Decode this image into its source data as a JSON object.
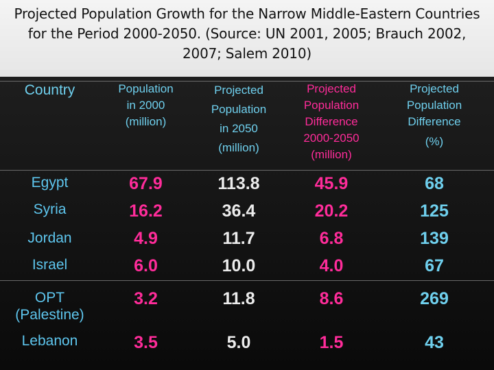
{
  "title": {
    "line1": "Projected Population Growth for the Narrow Middle-Eastern Countries",
    "line2": "for the Period 2000-2050. (Source: UN 2001, 2005; Brauch 2002,",
    "line3": "2007;  Salem 2010)"
  },
  "headers": {
    "country": "Country",
    "pop2000": [
      "Population",
      "in 2000",
      "(million)"
    ],
    "pop2050": [
      "Projected",
      "Population",
      "in 2050",
      "(million)"
    ],
    "diff": [
      "Projected",
      "Population",
      "Difference",
      "2000-2050",
      "(million)"
    ],
    "pct": [
      "Projected",
      "Population",
      "Difference",
      "(%)"
    ]
  },
  "rows": [
    {
      "country": "Egypt",
      "pop2000": "67.9",
      "pop2050": "113.8",
      "diff": "45.9",
      "pct": "68"
    },
    {
      "country": "Syria",
      "pop2000": "16.2",
      "pop2050": "36.4",
      "diff": "20.2",
      "pct": "125"
    },
    {
      "country": "Jordan",
      "pop2000": "4.9",
      "pop2050": "11.7",
      "diff": "6.8",
      "pct": "139"
    },
    {
      "country": "Israel",
      "pop2000": "6.0",
      "pop2050": "10.0",
      "diff": "4.0",
      "pct": "67"
    },
    {
      "country_line1": "OPT",
      "country_line2": "(Palestine)",
      "pop2000": "3.2",
      "pop2050": "11.8",
      "diff": "8.6",
      "pct": "269"
    },
    {
      "country": "Lebanon",
      "pop2000": "3.5",
      "pop2050": "5.0",
      "diff": "1.5",
      "pct": "43"
    }
  ],
  "colors": {
    "header_cyan": "#6fd0ee",
    "value_pink": "#ff2c9a",
    "value_white": "#ececec",
    "background": "#000000"
  }
}
